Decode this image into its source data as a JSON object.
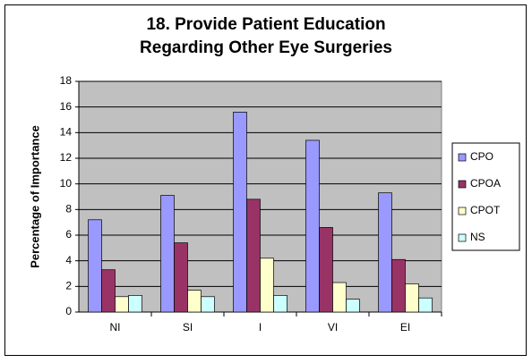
{
  "chart_data": {
    "type": "bar",
    "title": [
      "18.  Provide Patient Education",
      "Regarding Other Eye Surgeries"
    ],
    "y_label": "Percentage of Importance",
    "categories": [
      "NI",
      "SI",
      "I",
      "VI",
      "EI"
    ],
    "series": [
      {
        "name": "CPO",
        "color": "#9999ff",
        "values": [
          7.2,
          9.1,
          15.6,
          13.4,
          9.3
        ]
      },
      {
        "name": "CPOA",
        "color": "#993366",
        "values": [
          3.3,
          5.4,
          8.8,
          6.6,
          4.1
        ]
      },
      {
        "name": "CPOT",
        "color": "#ffffcc",
        "values": [
          1.2,
          1.7,
          4.2,
          2.3,
          2.2
        ]
      },
      {
        "name": "NS",
        "color": "#ccffff",
        "values": [
          1.3,
          1.2,
          1.3,
          1.0,
          1.1
        ]
      }
    ],
    "ylim": [
      0,
      18
    ],
    "yticks": [
      0,
      2,
      4,
      6,
      8,
      10,
      12,
      14,
      16,
      18
    ],
    "grid": true,
    "legend": "right"
  }
}
